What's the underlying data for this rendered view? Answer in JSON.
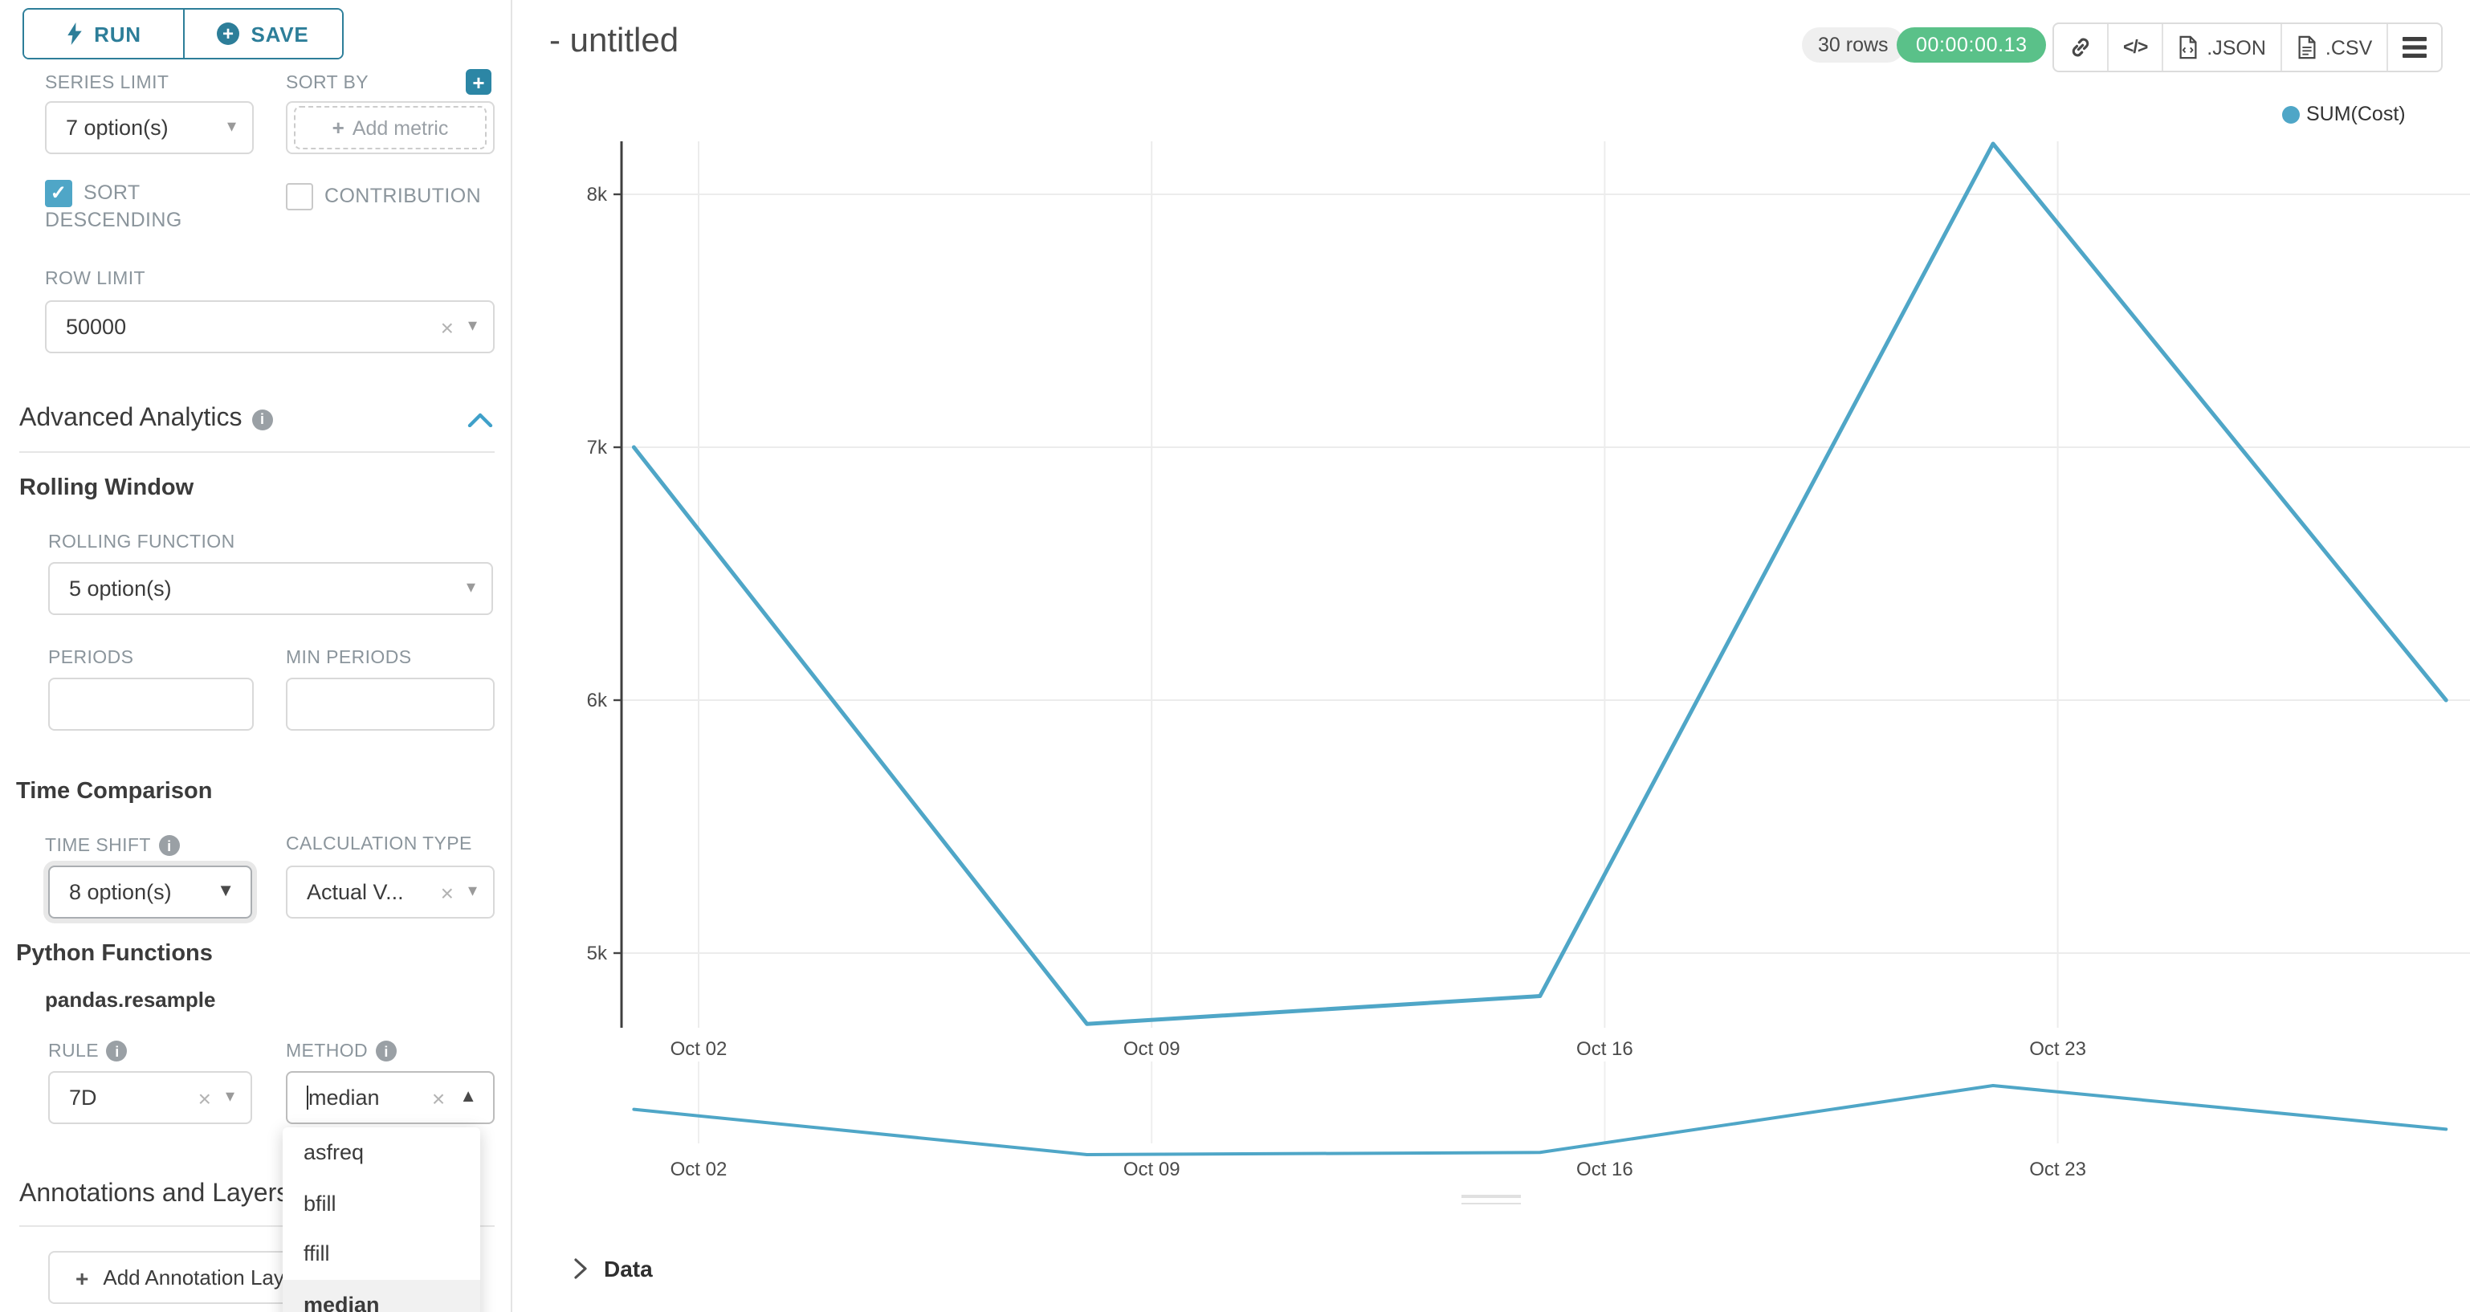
{
  "colors": {
    "accent_teal": "#2D7E99",
    "accent_teal_light": "#2C86A5",
    "series_blue": "#4FA6C7",
    "success_green": "#5AC189",
    "label_gray": "#8B959C",
    "gridline": "#ECECEC"
  },
  "sidebar": {
    "run_label": "RUN",
    "save_label": "SAVE",
    "series_limit": {
      "label": "SERIES LIMIT",
      "value": "7 option(s)"
    },
    "sort_by": {
      "label": "SORT BY",
      "placeholder": "Add metric"
    },
    "sort_descending": {
      "label": "SORT DESCENDING",
      "checked": true
    },
    "contribution": {
      "label": "CONTRIBUTION",
      "checked": false
    },
    "row_limit": {
      "label": "ROW LIMIT",
      "value": "50000"
    },
    "advanced_analytics": {
      "title": "Advanced Analytics"
    },
    "rolling_window": {
      "title": "Rolling Window",
      "rolling_function_label": "ROLLING FUNCTION",
      "rolling_function_value": "5 option(s)",
      "periods_label": "PERIODS",
      "periods_value": "",
      "min_periods_label": "MIN PERIODS",
      "min_periods_value": ""
    },
    "time_comparison": {
      "title": "Time Comparison",
      "time_shift_label": "TIME SHIFT",
      "time_shift_value": "8 option(s)",
      "calculation_type_label": "CALCULATION TYPE",
      "calculation_type_value": "Actual V..."
    },
    "python_functions": {
      "title": "Python Functions",
      "subtitle": "pandas.resample",
      "rule_label": "RULE",
      "rule_value": "7D",
      "method_label": "METHOD",
      "method_value": "median",
      "method_options": [
        "asfreq",
        "bfill",
        "ffill",
        "median"
      ],
      "method_selected": "median"
    },
    "annotations": {
      "title": "Annotations and Layers",
      "add_button_label": "Add Annotation Layer"
    }
  },
  "header": {
    "title": "- untitled",
    "rows_badge": "30 rows",
    "query_timer": "00:00:00.13",
    "export_json_label": ".JSON",
    "export_csv_label": ".CSV"
  },
  "chart_data": {
    "type": "line",
    "title": "",
    "legend": {
      "label": "SUM(Cost)",
      "position": "top-right"
    },
    "x_axis": {
      "tick_labels": [
        "Oct 02",
        "Oct 09",
        "Oct 16",
        "Oct 23"
      ],
      "tick_days": [
        2,
        9,
        16,
        23
      ],
      "unit": "date"
    },
    "y_axis": {
      "tick_labels": [
        "8k",
        "7k",
        "6k",
        "5k"
      ],
      "tick_values": [
        8000,
        7000,
        6000,
        5000
      ],
      "range": [
        4650,
        8300
      ]
    },
    "series": [
      {
        "name": "SUM(Cost)",
        "color": "#4FA6C7",
        "points": [
          {
            "day": 1,
            "label": "Oct 01",
            "value": 7000
          },
          {
            "day": 8,
            "label": "Oct 08",
            "value": 4720
          },
          {
            "day": 15,
            "label": "Oct 15",
            "value": 4830
          },
          {
            "day": 22,
            "label": "Oct 22",
            "value": 8200
          },
          {
            "day": 29,
            "label": "Oct 29",
            "value": 6000
          }
        ]
      }
    ],
    "minimap": {
      "present": true,
      "x_tick_labels": [
        "Oct 02",
        "Oct 09",
        "Oct 16",
        "Oct 23"
      ]
    },
    "grid": true
  },
  "data_panel": {
    "label": "Data"
  }
}
